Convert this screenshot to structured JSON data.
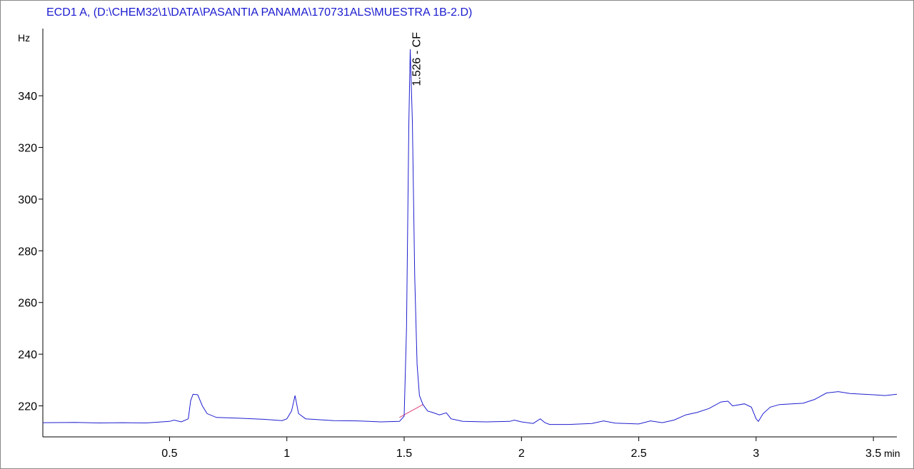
{
  "chart_data": {
    "type": "line",
    "title": "ECD1 A,  (D:\\CHEM32\\1\\DATA\\PASANTIA PANAMA\\170731ALS\\MUESTRA 1B-2.D)",
    "y_unit": "Hz",
    "x_unit": "min",
    "annotation": {
      "text": "1.526 - CF",
      "x": 1.526
    },
    "xlim": [
      -0.04,
      3.6
    ],
    "ylim": [
      208,
      366
    ],
    "xticks": [
      0.5,
      1,
      1.5,
      2,
      2.5,
      3,
      3.5
    ],
    "yticks": [
      220,
      240,
      260,
      280,
      300,
      320,
      340
    ],
    "series": [
      {
        "color": "#1f1fd0",
        "x": [
          -0.04,
          0.1,
          0.2,
          0.3,
          0.4,
          0.5,
          0.52,
          0.55,
          0.58,
          0.59,
          0.6,
          0.62,
          0.64,
          0.66,
          0.7,
          0.8,
          0.9,
          0.98,
          1.0,
          1.02,
          1.035,
          1.05,
          1.08,
          1.2,
          1.3,
          1.4,
          1.48,
          1.5,
          1.51,
          1.52,
          1.526,
          1.535,
          1.545,
          1.555,
          1.565,
          1.58,
          1.6,
          1.62,
          1.65,
          1.68,
          1.7,
          1.75,
          1.85,
          1.95,
          1.97,
          2.0,
          2.05,
          2.08,
          2.1,
          2.12,
          2.2,
          2.3,
          2.35,
          2.4,
          2.5,
          2.55,
          2.6,
          2.65,
          2.7,
          2.75,
          2.8,
          2.85,
          2.88,
          2.9,
          2.95,
          2.98,
          3.0,
          3.01,
          3.03,
          3.06,
          3.1,
          3.2,
          3.25,
          3.3,
          3.35,
          3.4,
          3.5,
          3.55,
          3.6
        ],
        "values": [
          213.5,
          213.6,
          213.4,
          213.5,
          213.4,
          214,
          214.5,
          213.8,
          215,
          222,
          224.5,
          224.3,
          220,
          217,
          215.5,
          215.2,
          214.8,
          214.3,
          215,
          218,
          224,
          217,
          215,
          214.3,
          214.2,
          213.8,
          214,
          216,
          250,
          330,
          358,
          330,
          270,
          236,
          224,
          220.5,
          218,
          217.5,
          216.5,
          217.3,
          215,
          214,
          213.8,
          214,
          214.5,
          213.8,
          213.2,
          215,
          213.5,
          212.8,
          212.8,
          213.2,
          214.2,
          213.3,
          213,
          214.2,
          213.5,
          214.5,
          216.5,
          217.5,
          219,
          221.5,
          221.8,
          220,
          220.8,
          219.5,
          215,
          214,
          217,
          219.5,
          220.5,
          221,
          222.5,
          225,
          225.5,
          224.8,
          224.3,
          224,
          224.5
        ]
      }
    ],
    "baseline": {
      "color": "#e0407a",
      "x": [
        1.48,
        1.58
      ],
      "values": [
        215.5,
        220.5
      ]
    }
  }
}
